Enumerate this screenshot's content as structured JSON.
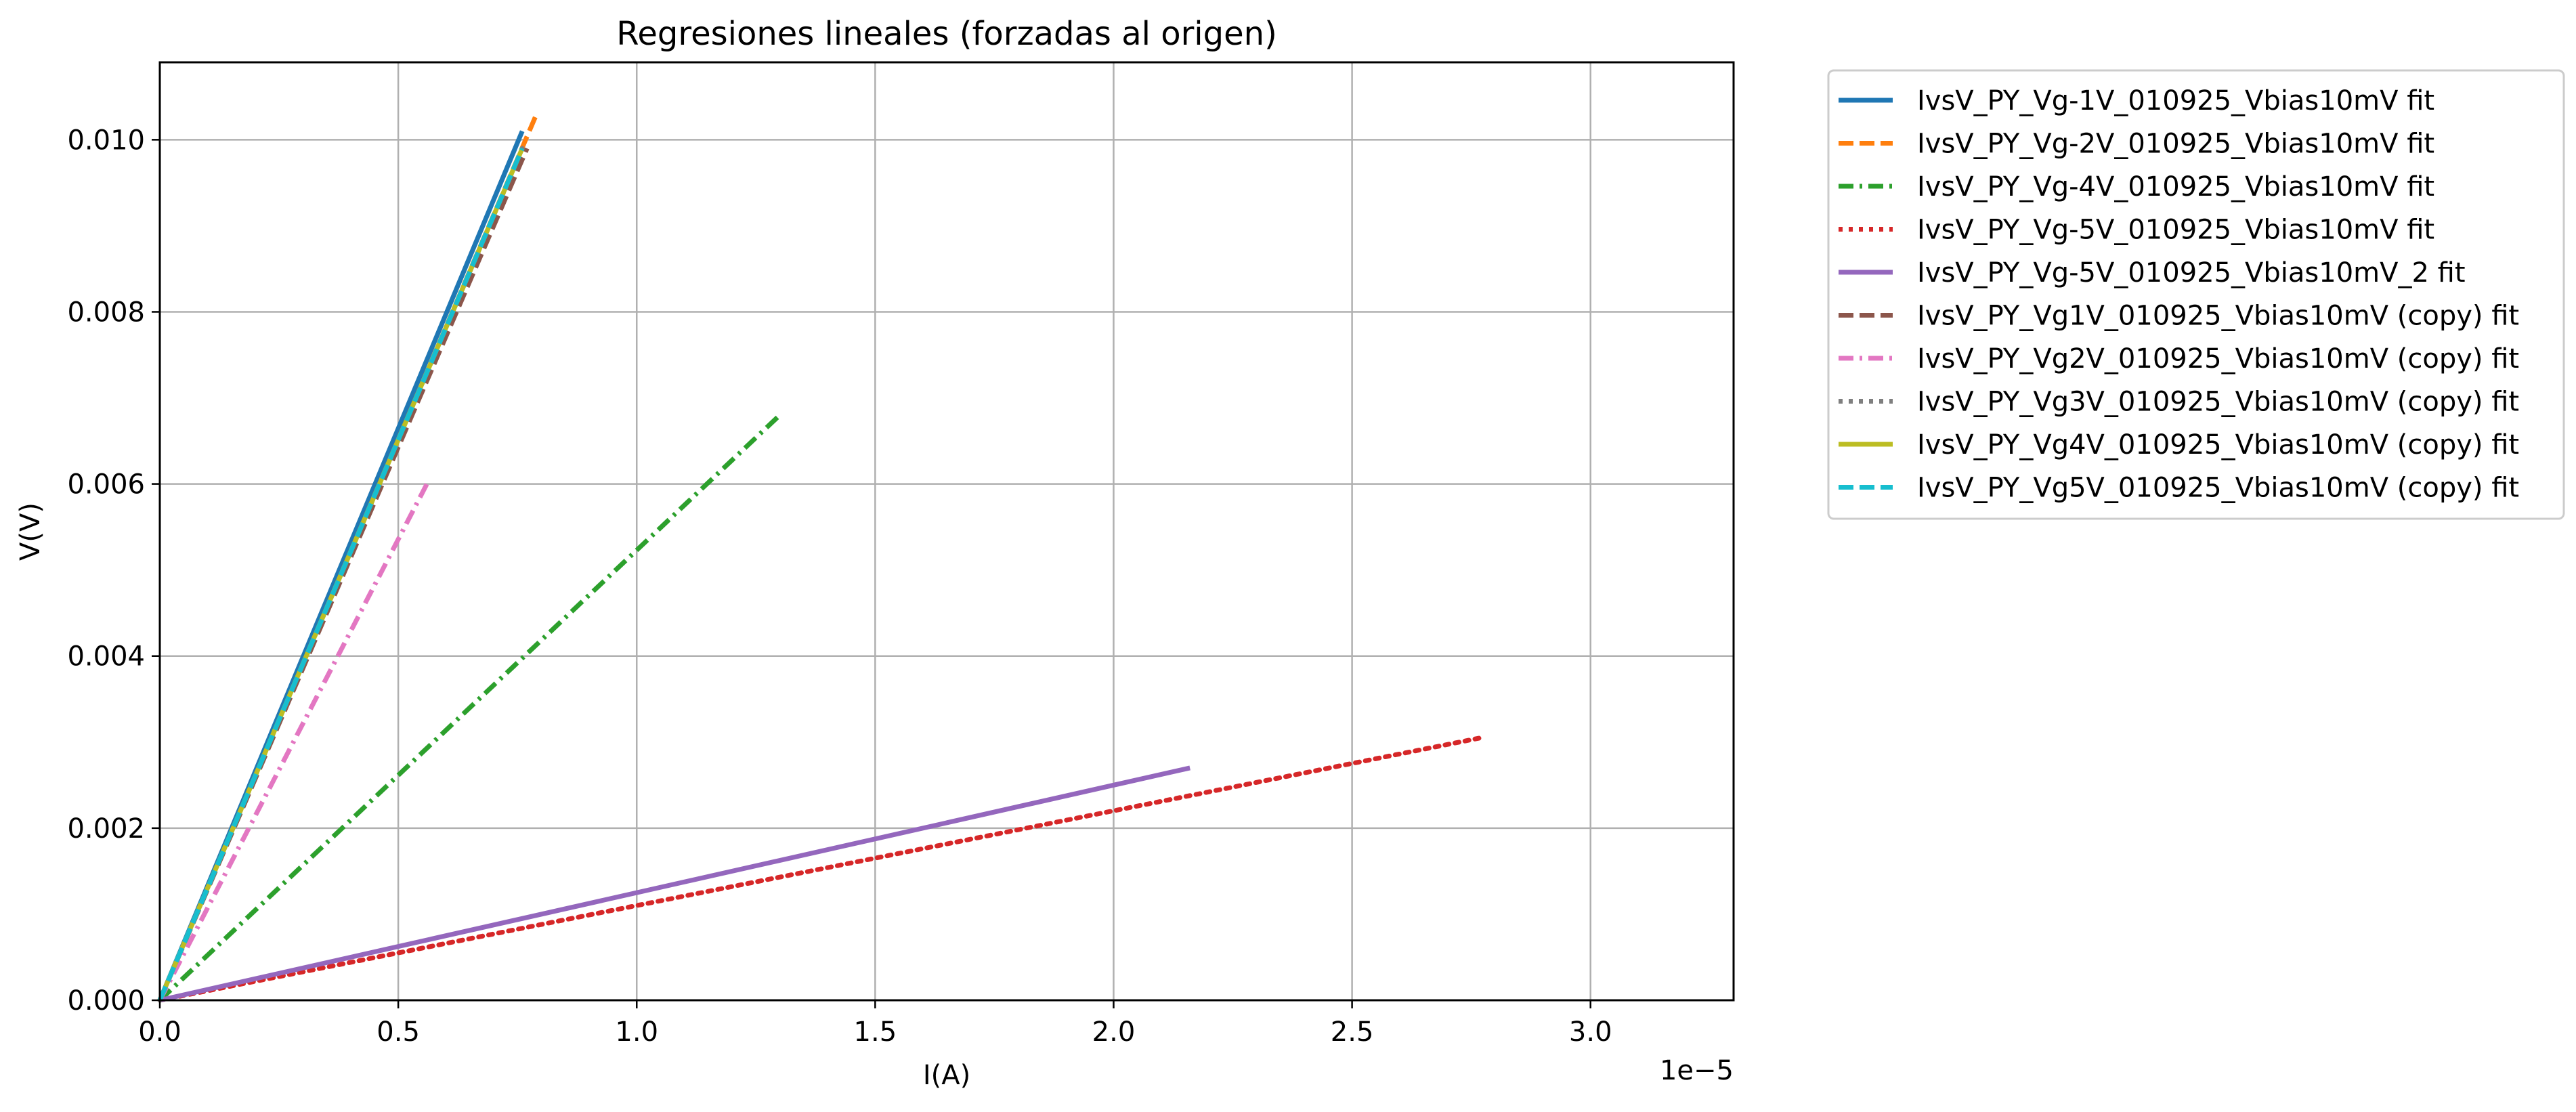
{
  "chart_data": {
    "type": "line",
    "title": "Regresiones lineales (forzadas al origen)",
    "xlabel": "I(A)",
    "ylabel": "V(V)",
    "x_offset_label": "1e−5",
    "xlim": [
      0,
      3.3e-05
    ],
    "ylim": [
      0,
      0.0109
    ],
    "x_ticks": [
      0,
      5e-06,
      1e-05,
      1.5e-05,
      2e-05,
      2.5e-05,
      3e-05
    ],
    "x_tick_labels": [
      "0.0",
      "0.5",
      "1.0",
      "1.5",
      "2.0",
      "2.5",
      "3.0"
    ],
    "y_ticks": [
      0,
      0.002,
      0.004,
      0.006,
      0.008,
      0.01
    ],
    "y_tick_labels": [
      "0.000",
      "0.002",
      "0.004",
      "0.006",
      "0.008",
      "0.010"
    ],
    "grid": true,
    "legend_position": "outside-right",
    "series": [
      {
        "name": "IvsV_PY_Vg-1V_010925_Vbias10mV fit",
        "color": "#1f77b4",
        "dash": "solid",
        "x": [
          0,
          7.6e-06
        ],
        "y": [
          0,
          0.0101
        ]
      },
      {
        "name": "IvsV_PY_Vg-2V_010925_Vbias10mV fit",
        "color": "#ff7f0e",
        "dash": "dashed",
        "x": [
          0,
          7.9e-06
        ],
        "y": [
          0,
          0.0103
        ]
      },
      {
        "name": "IvsV_PY_Vg-4V_010925_Vbias10mV fit",
        "color": "#2ca02c",
        "dash": "dashdot",
        "x": [
          0,
          1.3e-05
        ],
        "y": [
          0,
          0.0068
        ]
      },
      {
        "name": "IvsV_PY_Vg-5V_010925_Vbias10mV fit",
        "color": "#d62728",
        "dash": "dotted",
        "x": [
          0,
          2.77e-05
        ],
        "y": [
          0,
          0.00305
        ]
      },
      {
        "name": "IvsV_PY_Vg-5V_010925_Vbias10mV_2 fit",
        "color": "#9467bd",
        "dash": "solid",
        "x": [
          0,
          2.16e-05
        ],
        "y": [
          0,
          0.0027
        ]
      },
      {
        "name": "IvsV_PY_Vg1V_010925_Vbias10mV (copy) fit",
        "color": "#8c564b",
        "dash": "dashed",
        "x": [
          0,
          7.7e-06
        ],
        "y": [
          0,
          0.0099
        ]
      },
      {
        "name": "IvsV_PY_Vg2V_010925_Vbias10mV (copy) fit",
        "color": "#e377c2",
        "dash": "dashdot",
        "x": [
          0,
          5.6e-06
        ],
        "y": [
          0,
          0.006
        ]
      },
      {
        "name": "IvsV_PY_Vg3V_010925_Vbias10mV (copy) fit",
        "color": "#7f7f7f",
        "dash": "dotted",
        "x": [
          0,
          7.6e-06
        ],
        "y": [
          0,
          0.0099
        ]
      },
      {
        "name": "IvsV_PY_Vg4V_010925_Vbias10mV (copy) fit",
        "color": "#bcbd22",
        "dash": "solid",
        "x": [
          0,
          7.6e-06
        ],
        "y": [
          0,
          0.0099
        ]
      },
      {
        "name": "IvsV_PY_Vg5V_010925_Vbias10mV (copy) fit",
        "color": "#17becf",
        "dash": "dashed",
        "x": [
          0,
          7.6e-06
        ],
        "y": [
          0,
          0.0099
        ]
      }
    ]
  }
}
